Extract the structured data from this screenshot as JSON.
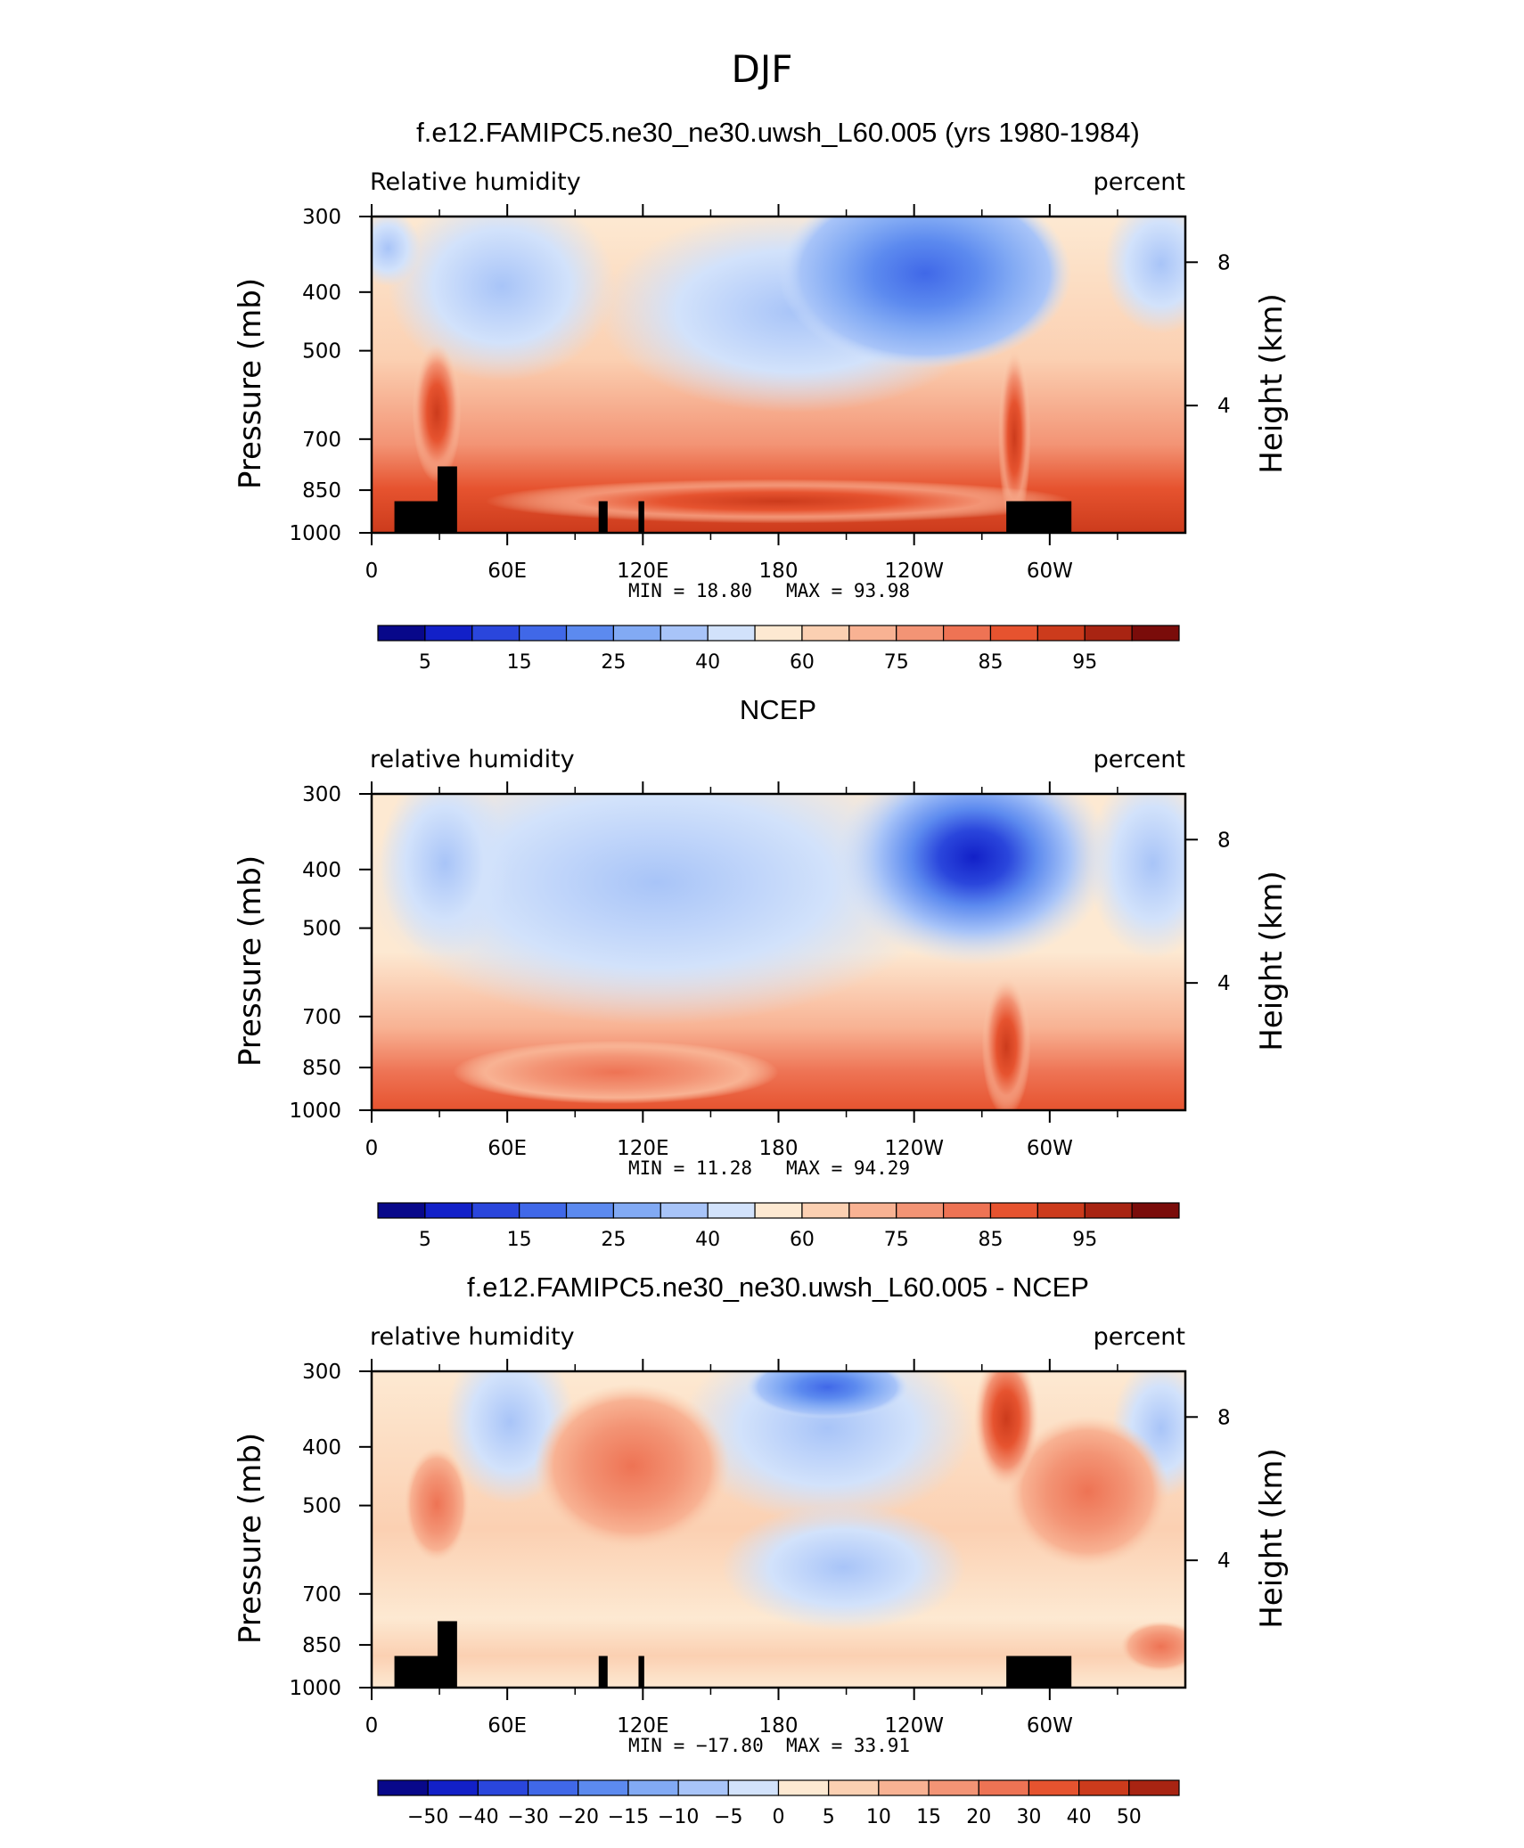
{
  "figure_title": "DJF",
  "cb_colors": {
    "abs": [
      "#08088a",
      "#1220c8",
      "#2a46dc",
      "#4068e8",
      "#5c8aef",
      "#82aaf4",
      "#a8c4f8",
      "#d2e2fb",
      "#fde9d2",
      "#fbd0b2",
      "#f8b293",
      "#f39475",
      "#ee7354",
      "#e6532f",
      "#cc3b1c",
      "#a82412",
      "#7a0c0a"
    ],
    "diff": [
      "#08088a",
      "#1220c8",
      "#2a46dc",
      "#4068e8",
      "#5c8aef",
      "#82aaf4",
      "#a8c4f8",
      "#d2e2fb",
      "#fde9d2",
      "#fbd0b2",
      "#f8b293",
      "#f39475",
      "#ee7354",
      "#e6532f",
      "#cc3b1c",
      "#a82412"
    ]
  },
  "chart_data": [
    {
      "type": "heatmap",
      "title": "f.e12.FAMIPC5.ne30_ne30.uwsh_L60.005 (yrs 1980-1984)",
      "left_label": "Relative humidity",
      "right_label": "percent",
      "ylabel": "Pressure (mb)",
      "y2label": "Height (km)",
      "x_ticks": [
        "0",
        "60E",
        "120E",
        "180",
        "120W",
        "60W"
      ],
      "x_tick_lon": [
        0,
        60,
        120,
        180,
        240,
        300
      ],
      "xlim": [
        0,
        360
      ],
      "y_ticks": [
        "300",
        "400",
        "500",
        "700",
        "850",
        "1000"
      ],
      "y_tick_p": [
        300,
        400,
        500,
        700,
        850,
        1000
      ],
      "ylim": [
        300,
        1000
      ],
      "y_scale": "log",
      "y2_ticks": [
        "8",
        "4"
      ],
      "y2_tick_p": [
        357,
        616
      ],
      "min_text": "MIN =   18.80",
      "max_text": "MAX =   93.98",
      "min": 18.8,
      "max": 93.98,
      "cb_labels": [
        "5",
        "15",
        "25",
        "40",
        "60",
        "75",
        "85",
        "95"
      ],
      "levels": [
        5,
        10,
        15,
        20,
        25,
        30,
        40,
        50,
        60,
        70,
        75,
        80,
        85,
        90,
        95
      ],
      "terrain_mask": true
    },
    {
      "type": "heatmap",
      "title": "NCEP",
      "left_label": "relative humidity",
      "right_label": "percent",
      "ylabel": "Pressure (mb)",
      "y2label": "Height (km)",
      "x_ticks": [
        "0",
        "60E",
        "120E",
        "180",
        "120W",
        "60W"
      ],
      "x_tick_lon": [
        0,
        60,
        120,
        180,
        240,
        300
      ],
      "xlim": [
        0,
        360
      ],
      "y_ticks": [
        "300",
        "400",
        "500",
        "700",
        "850",
        "1000"
      ],
      "y_tick_p": [
        300,
        400,
        500,
        700,
        850,
        1000
      ],
      "ylim": [
        300,
        1000
      ],
      "y_scale": "log",
      "y2_ticks": [
        "8",
        "4"
      ],
      "y2_tick_p": [
        357,
        616
      ],
      "min_text": "MIN =   11.28",
      "max_text": "MAX =   94.29",
      "min": 11.28,
      "max": 94.29,
      "cb_labels": [
        "5",
        "15",
        "25",
        "40",
        "60",
        "75",
        "85",
        "95"
      ],
      "levels": [
        5,
        10,
        15,
        20,
        25,
        30,
        40,
        50,
        60,
        70,
        75,
        80,
        85,
        90,
        95
      ],
      "terrain_mask": false
    },
    {
      "type": "heatmap",
      "title": "f.e12.FAMIPC5.ne30_ne30.uwsh_L60.005 - NCEP",
      "left_label": "relative humidity",
      "right_label": "percent",
      "ylabel": "Pressure (mb)",
      "y2label": "Height (km)",
      "x_ticks": [
        "0",
        "60E",
        "120E",
        "180",
        "120W",
        "60W"
      ],
      "x_tick_lon": [
        0,
        60,
        120,
        180,
        240,
        300
      ],
      "xlim": [
        0,
        360
      ],
      "y_ticks": [
        "300",
        "400",
        "500",
        "700",
        "850",
        "1000"
      ],
      "y_tick_p": [
        300,
        400,
        500,
        700,
        850,
        1000
      ],
      "ylim": [
        300,
        1000
      ],
      "y_scale": "log",
      "y2_ticks": [
        "8",
        "4"
      ],
      "y2_tick_p": [
        357,
        616
      ],
      "min_text": "MIN = −17.80",
      "max_text": "MAX =   33.91",
      "min": -17.8,
      "max": 33.91,
      "cb_labels": [
        "−50",
        "−40",
        "−30",
        "−20",
        "−15",
        "−10",
        "−5",
        "0",
        "5",
        "10",
        "15",
        "20",
        "30",
        "40",
        "50"
      ],
      "levels": [
        -50,
        -40,
        -30,
        -20,
        -15,
        -10,
        -5,
        0,
        5,
        10,
        15,
        20,
        30,
        40,
        50
      ],
      "terrain_mask": true
    }
  ]
}
